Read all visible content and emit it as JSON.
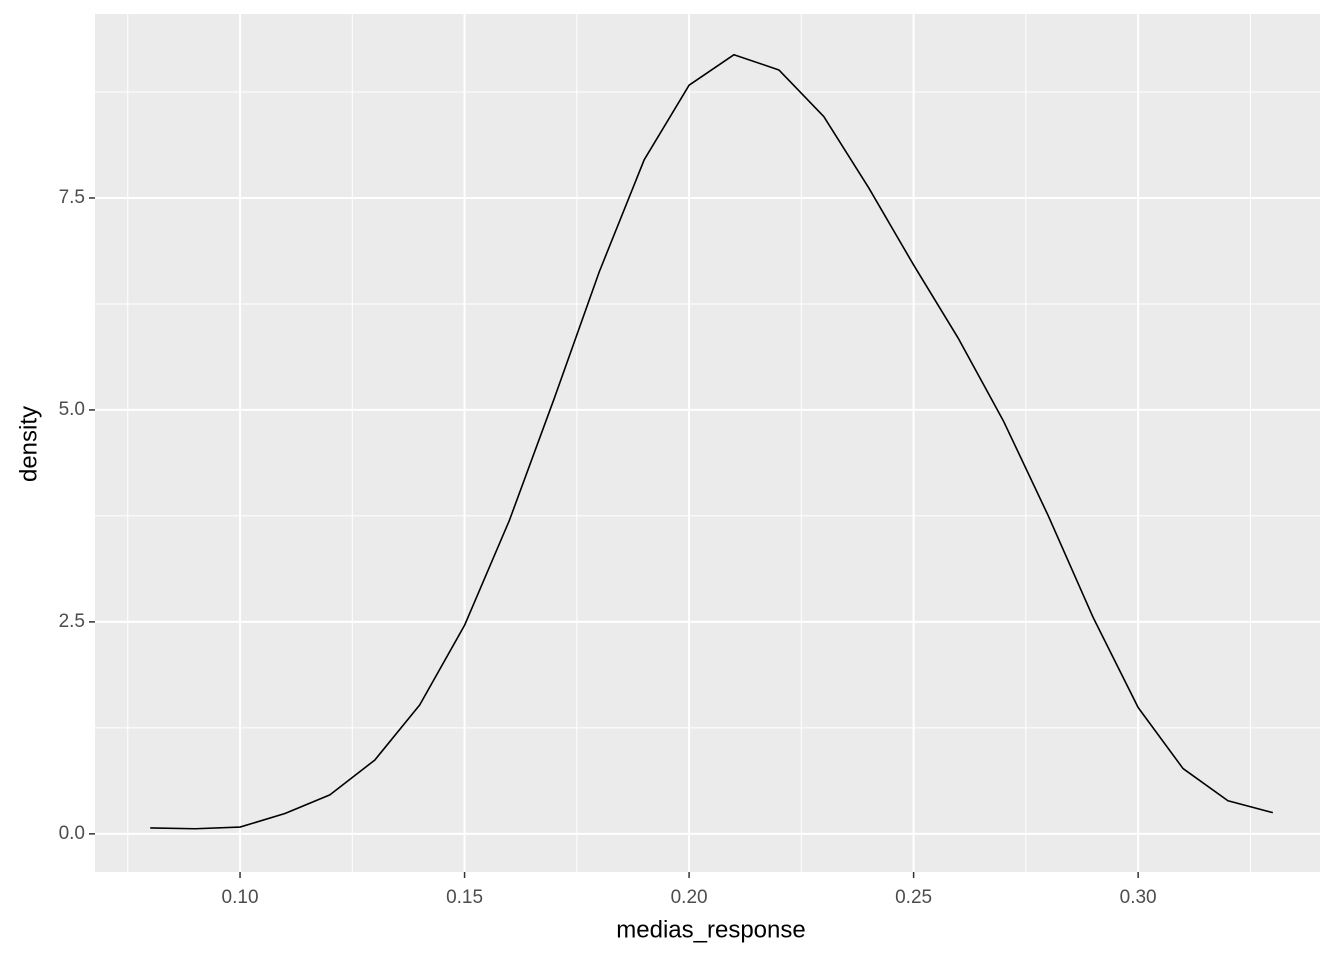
{
  "chart_data": {
    "type": "line",
    "x_label": "medias_response",
    "y_label": "density",
    "x": [
      0.08,
      0.09,
      0.1,
      0.11,
      0.12,
      0.13,
      0.14,
      0.15,
      0.16,
      0.17,
      0.18,
      0.19,
      0.2,
      0.21,
      0.22,
      0.23,
      0.24,
      0.25,
      0.26,
      0.27,
      0.28,
      0.29,
      0.3,
      0.31,
      0.32,
      0.33
    ],
    "values": [
      0.07,
      0.06,
      0.08,
      0.24,
      0.46,
      0.87,
      1.52,
      2.46,
      3.7,
      5.14,
      6.63,
      7.95,
      8.83,
      9.19,
      9.01,
      8.46,
      7.62,
      6.71,
      5.84,
      4.87,
      3.75,
      2.55,
      1.49,
      0.77,
      0.39,
      0.25
    ],
    "color": "#000000",
    "xlim": [
      0.0677,
      0.3405
    ],
    "ylim": [
      -0.45,
      9.67
    ],
    "xticks": [
      {
        "value": 0.1,
        "label": "0.10"
      },
      0.15,
      {
        "value": 0.2,
        "label": "0.20"
      },
      0.25,
      {
        "value": 0.3,
        "label": "0.30"
      }
    ],
    "yticks": [
      {
        "value": 0,
        "label": "0.0"
      },
      2.5,
      {
        "value": 5,
        "label": "5.0"
      },
      7.5
    ],
    "grid": true,
    "minor_grid": true
  }
}
